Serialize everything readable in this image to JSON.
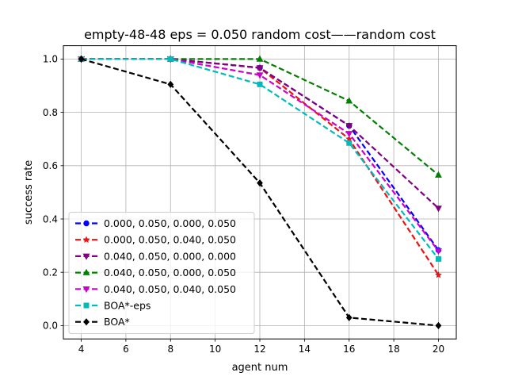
{
  "chart_data": {
    "type": "line",
    "title": "empty-48-48    eps = 0.050    random cost——random cost",
    "xlabel": "agent num",
    "ylabel": "success rate",
    "xlim": [
      3.2,
      20.8
    ],
    "ylim": [
      -0.05,
      1.05
    ],
    "xticks": [
      4,
      6,
      8,
      10,
      12,
      14,
      16,
      18,
      20
    ],
    "xtick_labels": [
      "4",
      "6",
      "8",
      "10",
      "12",
      "14",
      "16",
      "18",
      "20"
    ],
    "yticks": [
      0.0,
      0.2,
      0.4,
      0.6,
      0.8,
      1.0
    ],
    "ytick_labels": [
      "0.0",
      "0.2",
      "0.4",
      "0.6",
      "0.8",
      "1.0"
    ],
    "grid": true,
    "legend_position": "lower-left",
    "x": [
      4,
      8,
      12,
      16,
      20
    ],
    "series": [
      {
        "name": "0.000, 0.050, 0.000, 0.050",
        "color": "#0000ff",
        "marker": "circle",
        "values": [
          1.0,
          1.0,
          0.967,
          0.75,
          0.283
        ]
      },
      {
        "name": "0.000, 0.050, 0.040, 0.050",
        "color": "#ee1111",
        "marker": "star",
        "values": [
          1.0,
          1.0,
          0.967,
          0.7,
          0.19
        ]
      },
      {
        "name": "0.040, 0.050, 0.000, 0.000",
        "color": "#800080",
        "marker": "triangle-down",
        "values": [
          1.0,
          1.0,
          0.967,
          0.75,
          0.44
        ]
      },
      {
        "name": "0.040, 0.050, 0.000, 0.050",
        "color": "#008000",
        "marker": "triangle-up",
        "values": [
          1.0,
          1.0,
          1.0,
          0.843,
          0.565
        ]
      },
      {
        "name": "0.040, 0.050, 0.040, 0.050",
        "color": "#cc00cc",
        "marker": "triangle-down",
        "values": [
          1.0,
          1.0,
          0.94,
          0.72,
          0.28
        ]
      },
      {
        "name": "BOA*-eps",
        "color": "#00bbbb",
        "marker": "square",
        "values": [
          1.0,
          1.0,
          0.905,
          0.685,
          0.25
        ]
      },
      {
        "name": "BOA*",
        "color": "#000000",
        "marker": "diamond",
        "values": [
          1.0,
          0.905,
          0.535,
          0.03,
          0.0
        ]
      }
    ]
  }
}
